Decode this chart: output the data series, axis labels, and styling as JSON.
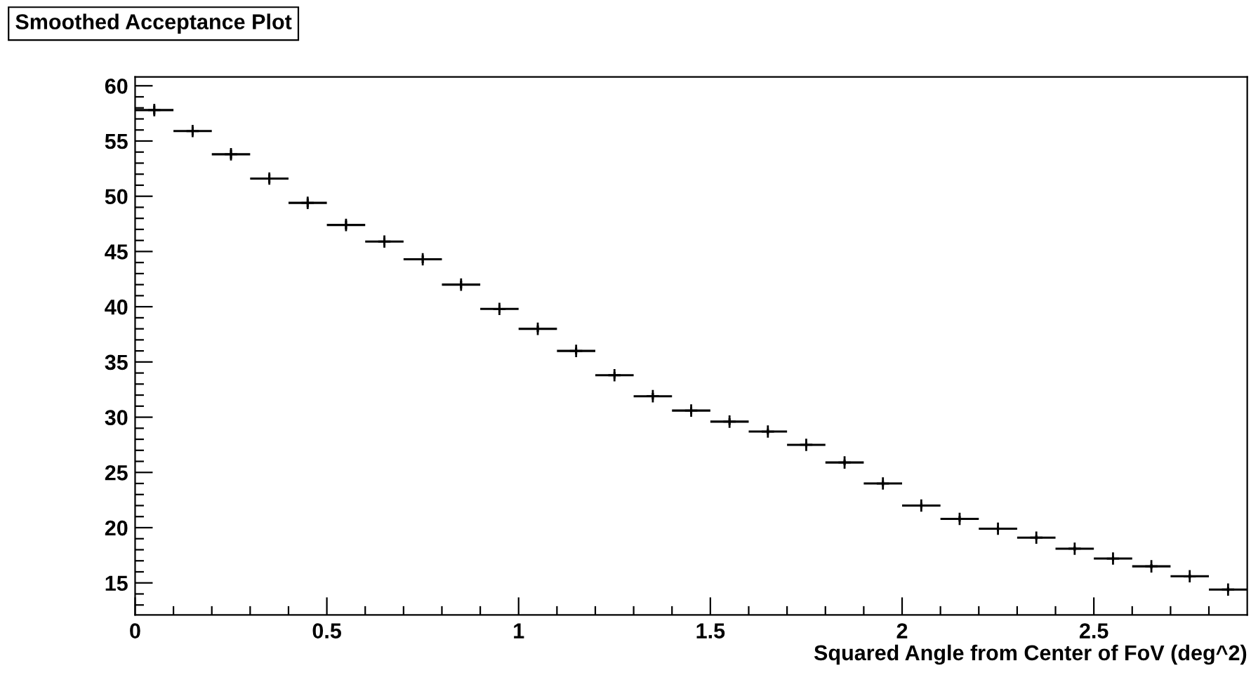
{
  "chart_data": {
    "type": "scatter",
    "title": "Smoothed Acceptance Plot",
    "xlabel": "Squared Angle from Center of FoV (deg^2)",
    "x": [
      0.05,
      0.15,
      0.25,
      0.35,
      0.45,
      0.55,
      0.65,
      0.75,
      0.85,
      0.95,
      1.05,
      1.15,
      1.25,
      1.35,
      1.45,
      1.55,
      1.65,
      1.75,
      1.85,
      1.95,
      2.05,
      2.15,
      2.25,
      2.35,
      2.45,
      2.55,
      2.65,
      2.75,
      2.85
    ],
    "values": [
      57.8,
      55.9,
      53.8,
      51.6,
      49.4,
      47.4,
      45.9,
      44.3,
      42.0,
      39.8,
      38.0,
      36.0,
      33.8,
      31.9,
      30.6,
      29.6,
      28.7,
      27.5,
      25.9,
      24.0,
      22.0,
      20.8,
      19.9,
      19.1,
      18.1,
      17.2,
      16.5,
      15.6,
      14.4
    ],
    "errors": [
      0.4,
      0.4,
      0.4,
      0.4,
      0.4,
      0.4,
      0.35,
      0.35,
      0.35,
      0.35,
      0.3,
      0.3,
      0.3,
      0.3,
      0.3,
      0.3,
      0.25,
      0.25,
      0.25,
      0.25,
      0.25,
      0.25,
      0.2,
      0.2,
      0.2,
      0.2,
      0.2,
      0.2,
      0.2
    ],
    "xerrors": [
      0.05,
      0.05,
      0.05,
      0.05,
      0.05,
      0.05,
      0.05,
      0.05,
      0.05,
      0.05,
      0.05,
      0.05,
      0.05,
      0.05,
      0.05,
      0.05,
      0.05,
      0.05,
      0.05,
      0.05,
      0.05,
      0.05,
      0.05,
      0.05,
      0.05,
      0.05,
      0.05,
      0.05,
      0.05
    ],
    "color": "#000000",
    "marker": "cross",
    "xlim": [
      0,
      2.9
    ],
    "ylim": [
      12.1,
      60.8
    ],
    "xticks": [
      0,
      0.5,
      1,
      1.5,
      2,
      2.5,
      {
        "value": 0.1,
        "label": null
      },
      {
        "value": 0.2,
        "label": null
      },
      {
        "value": 0.3,
        "label": null
      },
      {
        "value": 0.4,
        "label": null
      },
      {
        "value": 0.6,
        "label": null
      },
      {
        "value": 0.7,
        "label": null
      },
      {
        "value": 0.8,
        "label": null
      },
      {
        "value": 0.9,
        "label": null
      },
      {
        "value": 1.1,
        "label": null
      },
      {
        "value": 1.2,
        "label": null
      },
      {
        "value": 1.3,
        "label": null
      },
      {
        "value": 1.4,
        "label": null
      },
      {
        "value": 1.6,
        "label": null
      },
      {
        "value": 1.7,
        "label": null
      },
      {
        "value": 1.8,
        "label": null
      },
      {
        "value": 1.9,
        "label": null
      },
      {
        "value": 2.1,
        "label": null
      },
      {
        "value": 2.2,
        "label": null
      },
      {
        "value": 2.3,
        "label": null
      },
      {
        "value": 2.4,
        "label": null
      },
      {
        "value": 2.6,
        "label": null
      },
      {
        "value": 2.7,
        "label": null
      },
      {
        "value": 2.8,
        "label": null
      }
    ],
    "yticks": [
      15,
      20,
      25,
      30,
      35,
      40,
      45,
      50,
      55,
      60,
      {
        "value": 13,
        "label": null
      },
      {
        "value": 14,
        "label": null
      },
      {
        "value": 16,
        "label": null
      },
      {
        "value": 17,
        "label": null
      },
      {
        "value": 18,
        "label": null
      },
      {
        "value": 19,
        "label": null
      },
      {
        "value": 21,
        "label": null
      },
      {
        "value": 22,
        "label": null
      },
      {
        "value": 23,
        "label": null
      },
      {
        "value": 24,
        "label": null
      },
      {
        "value": 26,
        "label": null
      },
      {
        "value": 27,
        "label": null
      },
      {
        "value": 28,
        "label": null
      },
      {
        "value": 29,
        "label": null
      },
      {
        "value": 31,
        "label": null
      },
      {
        "value": 32,
        "label": null
      },
      {
        "value": 33,
        "label": null
      },
      {
        "value": 34,
        "label": null
      },
      {
        "value": 36,
        "label": null
      },
      {
        "value": 37,
        "label": null
      },
      {
        "value": 38,
        "label": null
      },
      {
        "value": 39,
        "label": null
      },
      {
        "value": 41,
        "label": null
      },
      {
        "value": 42,
        "label": null
      },
      {
        "value": 43,
        "label": null
      },
      {
        "value": 44,
        "label": null
      },
      {
        "value": 46,
        "label": null
      },
      {
        "value": 47,
        "label": null
      },
      {
        "value": 48,
        "label": null
      },
      {
        "value": 49,
        "label": null
      },
      {
        "value": 51,
        "label": null
      },
      {
        "value": 52,
        "label": null
      },
      {
        "value": 53,
        "label": null
      },
      {
        "value": 54,
        "label": null
      },
      {
        "value": 56,
        "label": null
      },
      {
        "value": 57,
        "label": null
      },
      {
        "value": 58,
        "label": null
      },
      {
        "value": 59,
        "label": null
      }
    ],
    "grid": false
  }
}
